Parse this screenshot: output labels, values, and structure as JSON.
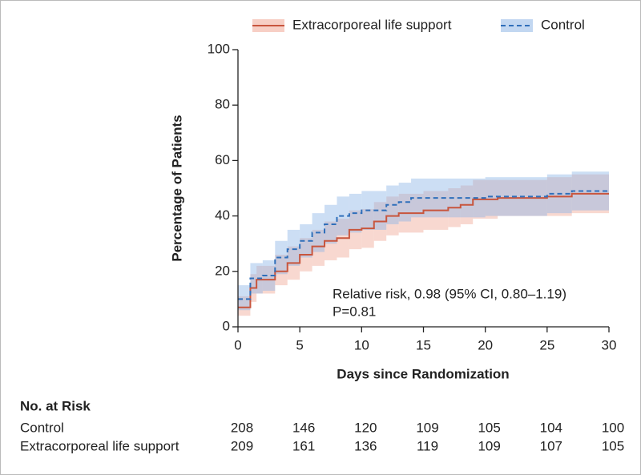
{
  "chart_data": {
    "type": "step",
    "x_label": "Days since Randomization",
    "y_label": "Percentage of Patients",
    "xlim": [
      0,
      30
    ],
    "xticks": [
      0,
      5,
      10,
      15,
      20,
      25,
      30
    ],
    "ylim": [
      0,
      100
    ],
    "yticks": [
      0,
      20,
      40,
      60,
      80,
      100
    ],
    "legend": "top",
    "annotations": [
      "Relative risk, 0.98 (95% CI, 0.80–1.19)",
      "P=0.81"
    ],
    "series": [
      {
        "name": "Extracorporeal life support",
        "color": "#c8553d",
        "band_color": "#f0a896",
        "dash": false,
        "x": [
          0,
          1,
          1.5,
          3,
          4,
          5,
          6,
          7,
          8,
          9,
          10,
          11,
          12,
          13,
          15,
          17,
          18,
          19,
          21,
          25,
          27
        ],
        "values": [
          7,
          14,
          17,
          20,
          23,
          26,
          29,
          31,
          32,
          35,
          35.5,
          38,
          40,
          41,
          42,
          43,
          44,
          46,
          46.5,
          47,
          48
        ],
        "lower": [
          4,
          9,
          12,
          15,
          17,
          20,
          22,
          24,
          25,
          28,
          28.5,
          31,
          33,
          34,
          35,
          36,
          37,
          39,
          40,
          40,
          41
        ],
        "upper": [
          11,
          19,
          22,
          26,
          29,
          32,
          35,
          38,
          39,
          42,
          42.5,
          45,
          47,
          48,
          49,
          50,
          51,
          53,
          53,
          54,
          55
        ]
      },
      {
        "name": "Control",
        "color": "#2f6fba",
        "band_color": "#8fb6e6",
        "dash": true,
        "x": [
          0,
          1,
          2,
          3,
          4,
          5,
          6,
          7,
          8,
          9,
          10,
          12,
          13,
          14,
          20,
          25,
          27
        ],
        "values": [
          10,
          17.5,
          18.5,
          25,
          28,
          31,
          34,
          37,
          40,
          41,
          42,
          44,
          45,
          46.5,
          47,
          48,
          49
        ],
        "lower": [
          6,
          12,
          13,
          19,
          22,
          25,
          27,
          30,
          33,
          34,
          35,
          37,
          38,
          39.5,
          40,
          41,
          42
        ],
        "upper": [
          15,
          23,
          24,
          31,
          35,
          37,
          41,
          44,
          47,
          48,
          49,
          51,
          52,
          53.5,
          54,
          55,
          56
        ]
      }
    ],
    "risk_table": {
      "title": "No. at Risk",
      "rows": [
        {
          "label": "Control",
          "values": [
            208,
            146,
            120,
            109,
            105,
            104,
            100
          ]
        },
        {
          "label": "Extracorporeal life support",
          "values": [
            209,
            161,
            136,
            119,
            109,
            107,
            105
          ]
        }
      ]
    }
  }
}
